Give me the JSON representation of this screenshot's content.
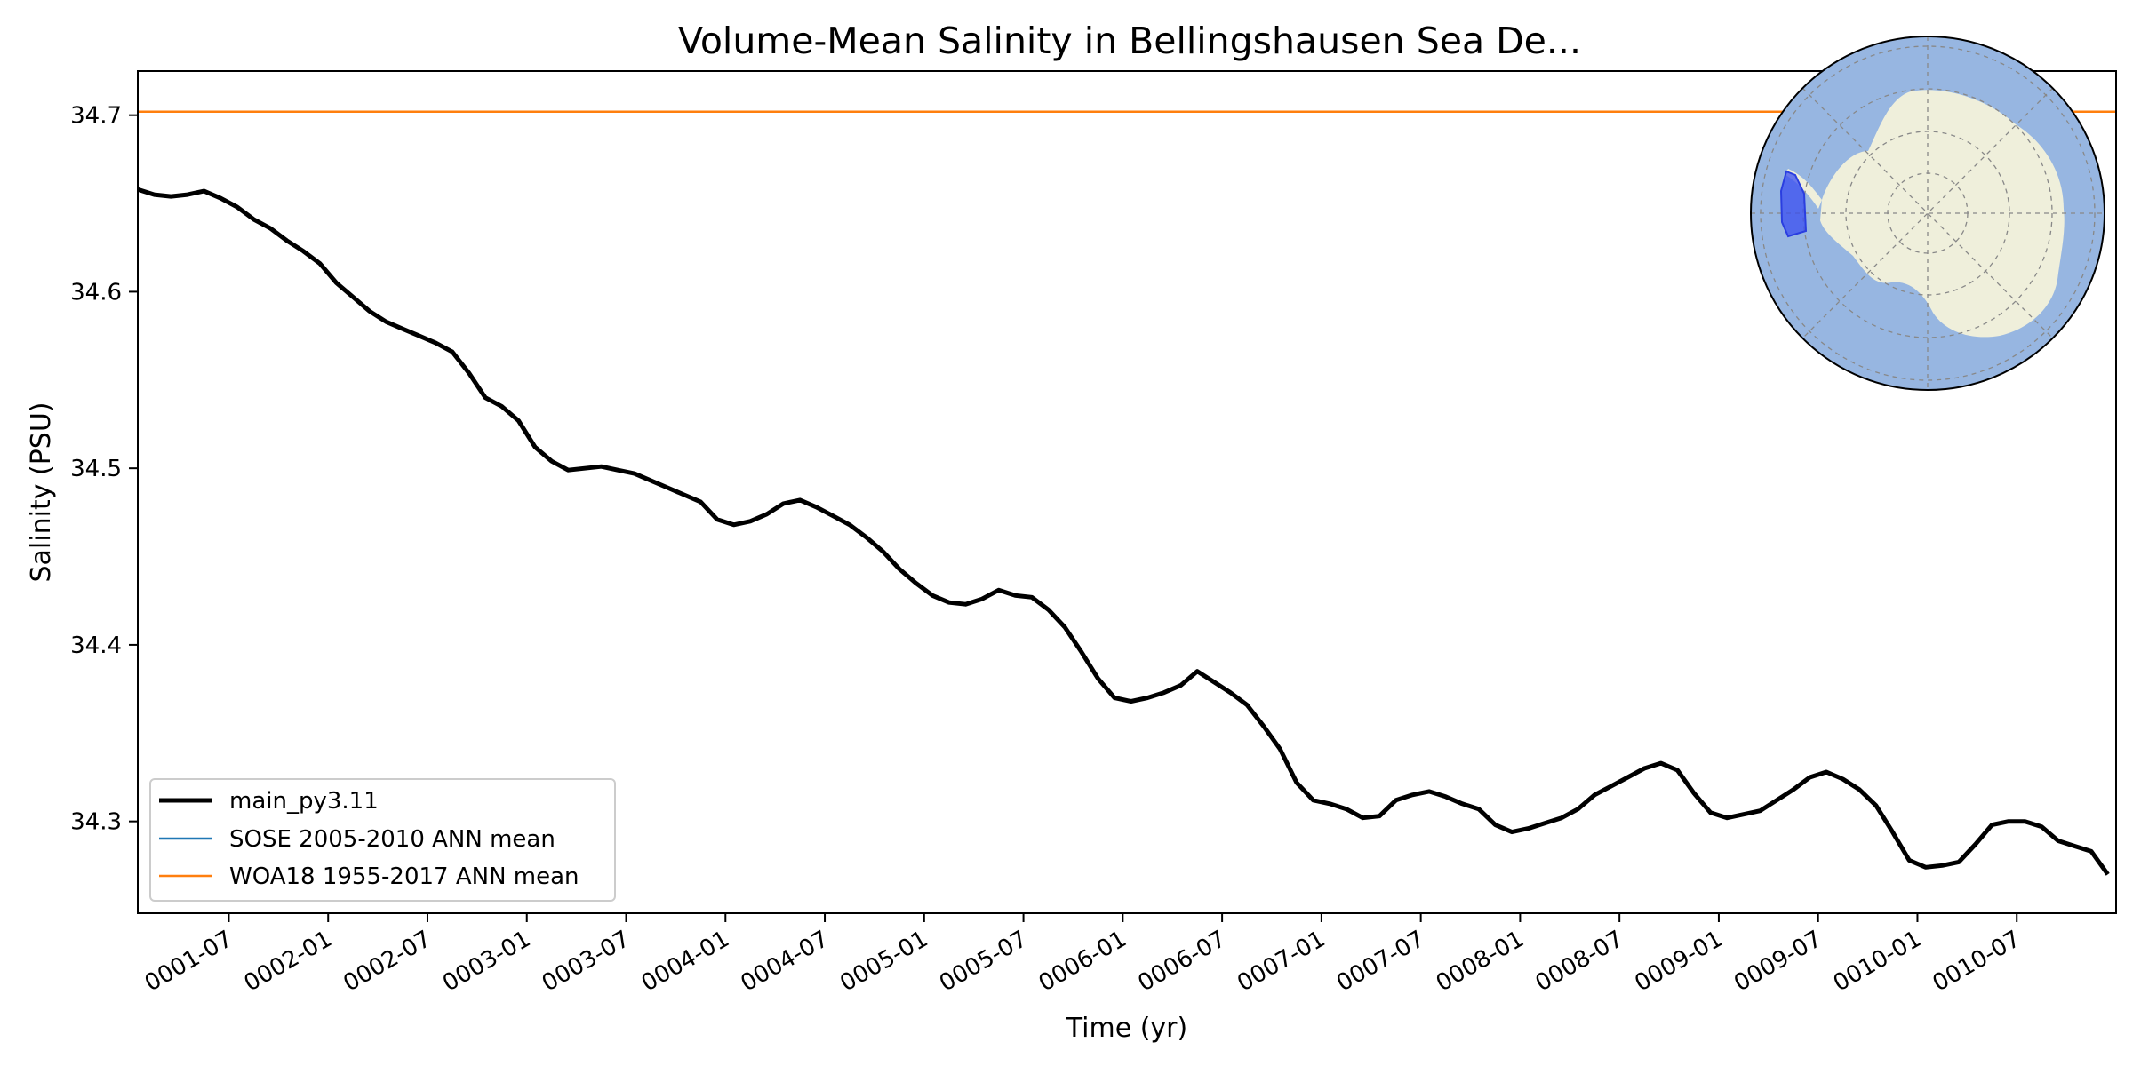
{
  "chart_data": {
    "type": "line",
    "title": "Volume-Mean Salinity in Bellingshausen Sea De...",
    "xlabel": "Time (yr)",
    "ylabel": "Salinity (PSU)",
    "x_tick_labels": [
      "0001-07",
      "0002-01",
      "0002-07",
      "0003-01",
      "0003-07",
      "0004-01",
      "0004-07",
      "0005-01",
      "0005-07",
      "0006-01",
      "0006-07",
      "0007-01",
      "0007-07",
      "0008-01",
      "0008-07",
      "0009-01",
      "0009-07",
      "0010-01",
      "0010-07"
    ],
    "y_ticks": [
      34.3,
      34.4,
      34.5,
      34.6,
      34.7
    ],
    "y_tick_labels": [
      "34.3",
      "34.4",
      "34.5",
      "34.6",
      "34.7"
    ],
    "xlim_months": [
      0.5,
      120
    ],
    "ylim": [
      34.248,
      34.725
    ],
    "grid": false,
    "legend_position": "lower-left",
    "colors": {
      "main": "#000000",
      "sose": "#1f77b4",
      "woa": "#ff7f0e",
      "ocean": "#97b6e1",
      "land": "#efefdb",
      "region": "#3a4ef0"
    },
    "series": [
      {
        "name": "main_py3.11",
        "color": "#000000",
        "x_months": [
          0.5,
          1.5,
          2.5,
          3.5,
          4.5,
          5.5,
          6.5,
          7.5,
          8.5,
          9.5,
          10.5,
          11.5,
          12.5,
          13.5,
          14.5,
          15.5,
          16.5,
          17.5,
          18.5,
          19.5,
          20.5,
          21.5,
          22.5,
          23.5,
          24.5,
          25.5,
          26.5,
          27.5,
          28.5,
          29.5,
          30.5,
          31.5,
          32.5,
          33.5,
          34.5,
          35.5,
          36.5,
          37.5,
          38.5,
          39.5,
          40.5,
          41.5,
          42.5,
          43.5,
          44.5,
          45.5,
          46.5,
          47.5,
          48.5,
          49.5,
          50.5,
          51.5,
          52.5,
          53.5,
          54.5,
          55.5,
          56.5,
          57.5,
          58.5,
          59.5,
          60.5,
          61.5,
          62.5,
          63.5,
          64.5,
          65.5,
          66.5,
          67.5,
          68.5,
          69.5,
          70.5,
          71.5,
          72.5,
          73.5,
          74.5,
          75.5,
          76.5,
          77.5,
          78.5,
          79.5,
          80.5,
          81.5,
          82.5,
          83.5,
          84.5,
          85.5,
          86.5,
          87.5,
          88.5,
          89.5,
          90.5,
          91.5,
          92.5,
          93.5,
          94.5,
          95.5,
          96.5,
          97.5,
          98.5,
          99.5,
          100.5,
          101.5,
          102.5,
          103.5,
          104.5,
          105.5,
          106.5,
          107.5,
          108.5,
          109.5,
          110.5,
          111.5,
          112.5,
          113.5,
          114.5,
          115.5,
          116.5,
          117.5,
          118.5,
          119.5
        ],
        "y": [
          34.658,
          34.655,
          34.654,
          34.655,
          34.657,
          34.653,
          34.648,
          34.641,
          34.636,
          34.629,
          34.623,
          34.616,
          34.605,
          34.597,
          34.589,
          34.583,
          34.579,
          34.575,
          34.571,
          34.566,
          34.554,
          34.54,
          34.535,
          34.527,
          34.512,
          34.504,
          34.499,
          34.5,
          34.501,
          34.499,
          34.497,
          34.493,
          34.489,
          34.485,
          34.481,
          34.471,
          34.468,
          34.47,
          34.474,
          34.48,
          34.482,
          34.478,
          34.473,
          34.468,
          34.461,
          34.453,
          34.443,
          34.435,
          34.428,
          34.424,
          34.423,
          34.426,
          34.431,
          34.428,
          34.427,
          34.42,
          34.41,
          34.396,
          34.381,
          34.37,
          34.368,
          34.37,
          34.373,
          34.377,
          34.385,
          34.379,
          34.373,
          34.366,
          34.354,
          34.341,
          34.322,
          34.312,
          34.31,
          34.307,
          34.302,
          34.303,
          34.312,
          34.315,
          34.317,
          34.314,
          34.31,
          34.307,
          34.298,
          34.294,
          34.296,
          34.299,
          34.302,
          34.307,
          34.315,
          34.32,
          34.325,
          34.33,
          34.333,
          34.329,
          34.316,
          34.305,
          34.302,
          34.304,
          34.306,
          34.312,
          34.318,
          34.325,
          34.328,
          34.324,
          34.318,
          34.309,
          34.294,
          34.278,
          34.274,
          34.275,
          34.277,
          34.287,
          34.298,
          34.3,
          34.3,
          34.297,
          34.289,
          34.286,
          34.283,
          34.27
        ]
      },
      {
        "name": "SOSE 2005-2010 ANN mean",
        "color": "#1f77b4",
        "y": null
      },
      {
        "name": "WOA18 1955-2017 ANN mean",
        "color": "#ff7f0e",
        "y": 34.702
      }
    ]
  }
}
